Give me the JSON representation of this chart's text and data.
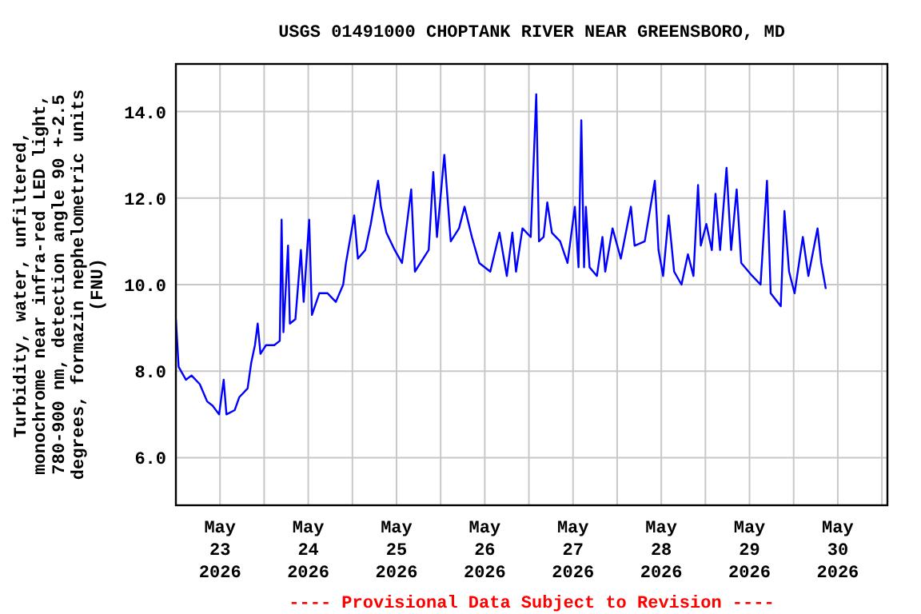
{
  "chart_data": {
    "type": "line",
    "title": "USGS 01491000 CHOPTANK RIVER NEAR GREENSBORO, MD",
    "ylabel": "Turbidity, water, unfiltered,\nmonochrome near infra-red LED light,\n780-900 nm, detection angle 90 +-2.5\ndegrees, formazin nephelometric units\n(FNU)",
    "annotations": [
      "---- Provisional Data Subject to Revision ----"
    ],
    "xlim": [
      "2026-05-23T00:00",
      "2026-05-31T01:30"
    ],
    "xticks": [
      {
        "value": "2026-05-23T12:00",
        "label": "May\n23\n2026"
      },
      {
        "value": "2026-05-24T00:00",
        "label": null
      },
      {
        "value": "2026-05-24T12:00",
        "label": "May\n24\n2026"
      },
      {
        "value": "2026-05-25T00:00",
        "label": null
      },
      {
        "value": "2026-05-25T12:00",
        "label": "May\n25\n2026"
      },
      {
        "value": "2026-05-26T00:00",
        "label": null
      },
      {
        "value": "2026-05-26T12:00",
        "label": "May\n26\n2026"
      },
      {
        "value": "2026-05-27T00:00",
        "label": null
      },
      {
        "value": "2026-05-27T12:00",
        "label": "May\n27\n2026"
      },
      {
        "value": "2026-05-28T00:00",
        "label": null
      },
      {
        "value": "2026-05-28T12:00",
        "label": "May\n28\n2026"
      },
      {
        "value": "2026-05-29T00:00",
        "label": null
      },
      {
        "value": "2026-05-29T12:00",
        "label": "May\n29\n2026"
      },
      {
        "value": "2026-05-30T00:00",
        "label": null
      },
      {
        "value": "2026-05-30T12:00",
        "label": "May\n30\n2026"
      },
      {
        "value": "2026-05-31T00:00",
        "label": null
      }
    ],
    "ylim": [
      4.9,
      15.1
    ],
    "yticks": [
      {
        "value": 6,
        "label": "6.0"
      },
      {
        "value": 8,
        "label": "8.0"
      },
      {
        "value": 10,
        "label": "10.0"
      },
      {
        "value": 12,
        "label": "12.0"
      },
      {
        "value": 14,
        "label": "14.0"
      }
    ],
    "grid": true,
    "marker": "none",
    "line_style": "solid",
    "x": [
      "2026-05-23T00:00",
      "2026-05-23T00:45",
      "2026-05-23T02:45",
      "2026-05-23T04:15",
      "2026-05-23T06:30",
      "2026-05-23T08:30",
      "2026-05-23T10:00",
      "2026-05-23T11:45",
      "2026-05-23T13:00",
      "2026-05-23T13:45",
      "2026-05-23T16:00",
      "2026-05-23T17:15",
      "2026-05-23T19:30",
      "2026-05-23T20:30",
      "2026-05-23T21:30",
      "2026-05-23T22:15",
      "2026-05-23T23:00",
      "2026-05-24T00:30",
      "2026-05-24T02:45",
      "2026-05-24T04:15",
      "2026-05-24T04:45",
      "2026-05-24T05:15",
      "2026-05-24T06:30",
      "2026-05-24T07:00",
      "2026-05-24T08:30",
      "2026-05-24T10:00",
      "2026-05-24T10:45",
      "2026-05-24T12:15",
      "2026-05-24T13:00",
      "2026-05-24T15:00",
      "2026-05-24T17:15",
      "2026-05-24T19:30",
      "2026-05-24T21:30",
      "2026-05-24T22:15",
      "2026-05-25T00:30",
      "2026-05-25T01:30",
      "2026-05-25T03:30",
      "2026-05-25T05:00",
      "2026-05-25T07:00",
      "2026-05-25T07:45",
      "2026-05-25T09:15",
      "2026-05-25T11:30",
      "2026-05-25T13:30",
      "2026-05-25T16:00",
      "2026-05-25T17:00",
      "2026-05-25T18:30",
      "2026-05-25T20:45",
      "2026-05-25T22:00",
      "2026-05-25T23:00",
      "2026-05-26T01:00",
      "2026-05-26T02:45",
      "2026-05-26T05:00",
      "2026-05-26T06:30",
      "2026-05-26T08:30",
      "2026-05-26T10:30",
      "2026-05-26T13:30",
      "2026-05-26T16:00",
      "2026-05-26T18:00",
      "2026-05-26T19:30",
      "2026-05-26T20:30",
      "2026-05-26T22:15",
      "2026-05-27T00:30",
      "2026-05-27T02:00",
      "2026-05-27T02:45",
      "2026-05-27T04:00",
      "2026-05-27T05:00",
      "2026-05-27T06:15",
      "2026-05-27T08:30",
      "2026-05-27T10:30",
      "2026-05-27T12:30",
      "2026-05-27T13:30",
      "2026-05-27T14:15",
      "2026-05-27T15:00",
      "2026-05-27T15:30",
      "2026-05-27T16:30",
      "2026-05-27T18:30",
      "2026-05-27T20:00",
      "2026-05-27T20:45",
      "2026-05-27T22:45",
      "2026-05-28T01:00",
      "2026-05-28T03:45",
      "2026-05-28T04:45",
      "2026-05-28T07:30",
      "2026-05-28T10:15",
      "2026-05-28T11:15",
      "2026-05-28T12:30",
      "2026-05-28T14:00",
      "2026-05-28T15:30",
      "2026-05-28T17:30",
      "2026-05-28T19:15",
      "2026-05-28T20:45",
      "2026-05-28T22:00",
      "2026-05-28T22:45",
      "2026-05-29T00:15",
      "2026-05-29T01:45",
      "2026-05-29T02:45",
      "2026-05-29T04:00",
      "2026-05-29T05:45",
      "2026-05-29T07:00",
      "2026-05-29T08:30",
      "2026-05-29T09:45",
      "2026-05-29T12:45",
      "2026-05-29T15:00",
      "2026-05-29T16:45",
      "2026-05-29T17:45",
      "2026-05-29T20:30",
      "2026-05-29T21:30",
      "2026-05-29T22:45",
      "2026-05-30T00:15",
      "2026-05-30T02:30",
      "2026-05-30T04:00",
      "2026-05-30T06:30",
      "2026-05-30T07:30",
      "2026-05-30T08:45"
    ],
    "series": [
      {
        "color": "#0000ff",
        "values": [
          9.2,
          8.1,
          7.8,
          7.9,
          7.7,
          7.3,
          7.2,
          7.0,
          7.8,
          7.0,
          7.1,
          7.4,
          7.6,
          8.2,
          8.6,
          9.1,
          8.4,
          8.6,
          8.6,
          8.7,
          11.5,
          8.9,
          10.9,
          9.1,
          9.2,
          10.8,
          9.6,
          11.5,
          9.3,
          9.8,
          9.8,
          9.6,
          10.0,
          10.5,
          11.6,
          10.6,
          10.8,
          11.4,
          12.4,
          11.8,
          11.2,
          10.8,
          10.5,
          12.2,
          10.3,
          10.5,
          10.8,
          12.6,
          11.1,
          13.0,
          11.0,
          11.3,
          11.8,
          11.1,
          10.5,
          10.3,
          11.2,
          10.2,
          11.2,
          10.3,
          11.3,
          11.1,
          14.4,
          11.0,
          11.1,
          11.9,
          11.2,
          11.0,
          10.5,
          11.8,
          10.4,
          13.8,
          10.4,
          11.8,
          10.4,
          10.2,
          11.1,
          10.3,
          11.3,
          10.6,
          11.8,
          10.9,
          11.0,
          12.4,
          10.8,
          10.2,
          11.6,
          10.3,
          10.0,
          10.7,
          10.2,
          12.3,
          10.9,
          11.4,
          10.8,
          12.1,
          10.8,
          12.7,
          10.8,
          12.2,
          10.5,
          10.2,
          10.0,
          12.4,
          9.8,
          9.5,
          11.7,
          10.3,
          9.8,
          11.1,
          10.2,
          11.3,
          10.5,
          9.9
        ]
      }
    ]
  }
}
